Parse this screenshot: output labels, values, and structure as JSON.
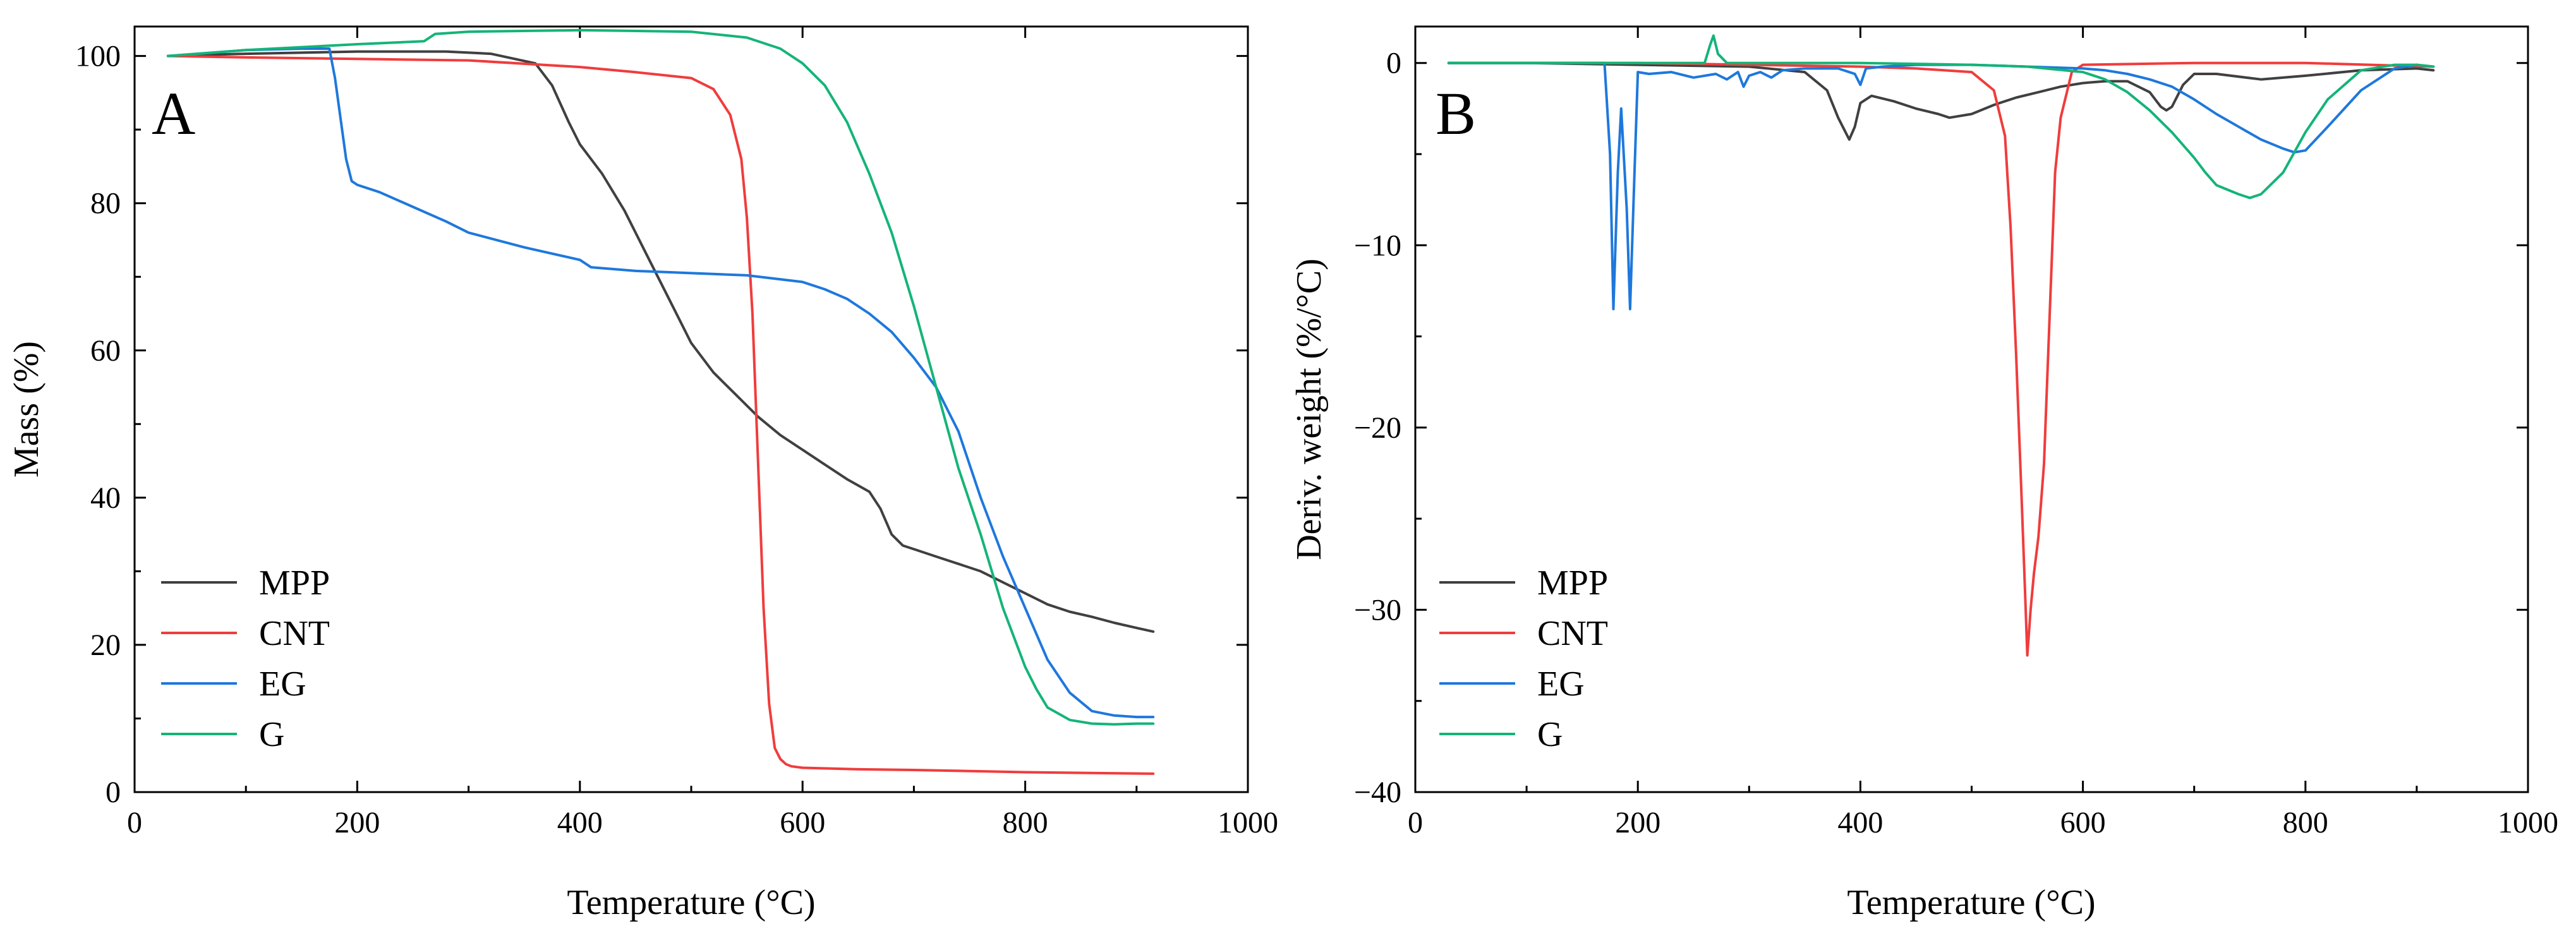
{
  "colors": {
    "MPP": "#404040",
    "CNT": "#f03c3c",
    "EG": "#1e78dc",
    "G": "#14b478"
  },
  "chart_data": [
    {
      "panel_label": "A",
      "type": "line",
      "xlabel": "Temperature (°C)",
      "ylabel": "Mass (%)",
      "xlim": [
        0,
        1000
      ],
      "ylim": [
        0,
        104
      ],
      "xticks": [
        0,
        200,
        400,
        600,
        800,
        1000
      ],
      "yticks": [
        0,
        20,
        40,
        60,
        80,
        100
      ],
      "grid": false,
      "legend_position": "bottom-left",
      "series": [
        {
          "name": "MPP",
          "color_key": "MPP",
          "x": [
            30,
            100,
            200,
            280,
            320,
            360,
            375,
            390,
            400,
            420,
            440,
            460,
            480,
            500,
            520,
            540,
            560,
            580,
            600,
            620,
            640,
            660,
            670,
            680,
            690,
            700,
            720,
            740,
            760,
            780,
            800,
            820,
            840,
            860,
            880,
            900,
            915
          ],
          "y": [
            100,
            100.3,
            100.6,
            100.6,
            100.3,
            99,
            96,
            91,
            88,
            84,
            79,
            73,
            67,
            61,
            57,
            54,
            51,
            48.5,
            46.5,
            44.5,
            42.5,
            40.8,
            38.5,
            35,
            33.5,
            33,
            32,
            31,
            30,
            28.5,
            27,
            25.5,
            24.5,
            23.8,
            23,
            22.3,
            21.8
          ]
        },
        {
          "name": "CNT",
          "color_key": "CNT",
          "x": [
            30,
            100,
            200,
            300,
            400,
            450,
            500,
            520,
            535,
            545,
            550,
            555,
            560,
            565,
            570,
            575,
            580,
            585,
            590,
            600,
            650,
            700,
            800,
            915
          ],
          "y": [
            100,
            99.8,
            99.6,
            99.4,
            98.5,
            97.8,
            97,
            95.5,
            92,
            86,
            78,
            65,
            45,
            25,
            12,
            6,
            4.5,
            3.8,
            3.5,
            3.3,
            3.1,
            3.0,
            2.7,
            2.5
          ]
        },
        {
          "name": "EG",
          "color_key": "EG",
          "x": [
            30,
            100,
            150,
            175,
            180,
            190,
            195,
            200,
            220,
            250,
            280,
            300,
            350,
            400,
            410,
            450,
            500,
            550,
            600,
            620,
            640,
            660,
            680,
            700,
            720,
            740,
            760,
            780,
            800,
            820,
            840,
            860,
            880,
            900,
            915
          ],
          "y": [
            100,
            100.8,
            101,
            101,
            97,
            86,
            83,
            82.5,
            81.5,
            79.5,
            77.5,
            76,
            74,
            72.3,
            71.3,
            70.8,
            70.5,
            70.2,
            69.3,
            68.3,
            67,
            65,
            62.5,
            59,
            55,
            49,
            40,
            32,
            25,
            18,
            13.5,
            11,
            10.4,
            10.2,
            10.2
          ]
        },
        {
          "name": "G",
          "color_key": "G",
          "x": [
            30,
            100,
            200,
            260,
            270,
            300,
            400,
            500,
            550,
            580,
            600,
            620,
            640,
            660,
            680,
            700,
            720,
            740,
            760,
            780,
            800,
            810,
            820,
            840,
            860,
            880,
            900,
            915
          ],
          "y": [
            100,
            100.8,
            101.6,
            102,
            103,
            103.3,
            103.5,
            103.3,
            102.5,
            101,
            99,
            96,
            91,
            84,
            76,
            66,
            55,
            44,
            35,
            25,
            17,
            14,
            11.5,
            9.8,
            9.3,
            9.2,
            9.3,
            9.3
          ]
        }
      ],
      "legend": [
        "MPP",
        "CNT",
        "EG",
        "G"
      ]
    },
    {
      "panel_label": "B",
      "type": "line",
      "xlabel": "Temperature (°C)",
      "ylabel": "Deriv. weight (%/°C)",
      "xlim": [
        0,
        1000
      ],
      "ylim": [
        -40,
        2
      ],
      "xticks": [
        0,
        200,
        400,
        600,
        800,
        1000
      ],
      "yticks": [
        0,
        -10,
        -20,
        -30,
        -40
      ],
      "ytick_labels": [
        "0",
        "−10",
        "−20",
        "−30",
        "−40"
      ],
      "grid": false,
      "legend_position": "bottom-left",
      "series": [
        {
          "name": "MPP",
          "color_key": "MPP",
          "x": [
            30,
            100,
            200,
            300,
            350,
            370,
            380,
            390,
            395,
            400,
            410,
            430,
            450,
            470,
            480,
            500,
            520,
            540,
            560,
            580,
            600,
            620,
            640,
            660,
            670,
            675,
            680,
            690,
            700,
            720,
            760,
            800,
            850,
            900,
            915
          ],
          "y": [
            0,
            0,
            -0.1,
            -0.2,
            -0.5,
            -1.5,
            -3,
            -4.2,
            -3.5,
            -2.2,
            -1.8,
            -2.1,
            -2.5,
            -2.8,
            -3,
            -2.8,
            -2.3,
            -1.9,
            -1.6,
            -1.3,
            -1.1,
            -1,
            -1,
            -1.6,
            -2.4,
            -2.6,
            -2.4,
            -1.2,
            -0.6,
            -0.6,
            -0.9,
            -0.7,
            -0.4,
            -0.3,
            -0.4
          ]
        },
        {
          "name": "CNT",
          "color_key": "CNT",
          "x": [
            30,
            100,
            200,
            300,
            400,
            450,
            500,
            520,
            530,
            535,
            540,
            545,
            548,
            550,
            553,
            556,
            560,
            565,
            570,
            575,
            580,
            590,
            600,
            700,
            800,
            915
          ],
          "y": [
            0,
            0,
            0,
            -0.1,
            -0.2,
            -0.3,
            -0.5,
            -1.5,
            -4,
            -9,
            -16,
            -24,
            -29,
            -32.5,
            -30,
            -28,
            -26,
            -22,
            -14,
            -6,
            -3,
            -0.5,
            -0.1,
            0,
            0,
            -0.2
          ]
        },
        {
          "name": "EG",
          "color_key": "EG",
          "x": [
            30,
            100,
            170,
            175,
            178,
            182,
            185,
            190,
            193,
            197,
            200,
            210,
            230,
            250,
            270,
            280,
            290,
            295,
            300,
            310,
            320,
            330,
            350,
            380,
            395,
            400,
            405,
            420,
            450,
            500,
            550,
            600,
            620,
            640,
            660,
            680,
            700,
            720,
            740,
            760,
            780,
            790,
            800,
            820,
            850,
            880,
            900,
            915
          ],
          "y": [
            0,
            0,
            0,
            -5,
            -13.5,
            -6,
            -2.5,
            -8,
            -13.5,
            -6,
            -0.5,
            -0.6,
            -0.5,
            -0.8,
            -0.6,
            -0.9,
            -0.5,
            -1.3,
            -0.7,
            -0.5,
            -0.8,
            -0.4,
            -0.3,
            -0.3,
            -0.6,
            -1.2,
            -0.3,
            -0.2,
            -0.1,
            -0.1,
            -0.2,
            -0.3,
            -0.4,
            -0.6,
            -0.9,
            -1.3,
            -2,
            -2.8,
            -3.5,
            -4.2,
            -4.7,
            -4.9,
            -4.8,
            -3.5,
            -1.5,
            -0.3,
            -0.1,
            -0.2
          ]
        },
        {
          "name": "G",
          "color_key": "G",
          "x": [
            30,
            100,
            200,
            260,
            265,
            268,
            272,
            280,
            300,
            400,
            500,
            550,
            600,
            620,
            640,
            660,
            680,
            700,
            710,
            720,
            740,
            750,
            760,
            780,
            800,
            820,
            850,
            880,
            900,
            915
          ],
          "y": [
            0,
            0,
            0,
            0,
            1,
            1.5,
            0.5,
            0,
            0,
            0,
            -0.1,
            -0.2,
            -0.5,
            -0.9,
            -1.6,
            -2.6,
            -3.8,
            -5.2,
            -6,
            -6.7,
            -7.2,
            -7.4,
            -7.2,
            -6,
            -3.8,
            -2,
            -0.4,
            -0.1,
            -0.1,
            -0.2
          ]
        }
      ],
      "legend": [
        "MPP",
        "CNT",
        "EG",
        "G"
      ]
    }
  ]
}
